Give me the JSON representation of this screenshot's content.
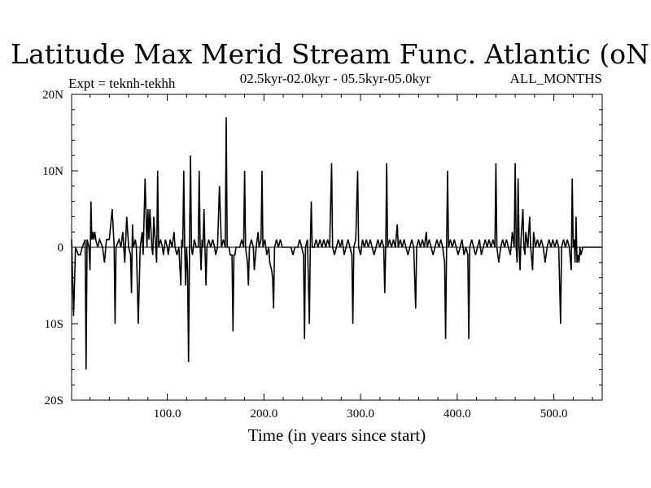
{
  "chart_data": {
    "type": "line",
    "title": "Latitude Max Merid Stream Func. Atlantic (oN)",
    "subtitle_left": "Expt = teknh-tekhh",
    "subtitle_center": "02.5kyr-02.0kyr - 05.5kyr-05.0kyr",
    "subtitle_right": "ALL_MONTHS",
    "xlabel": "Time (in years since start)",
    "ylabel": "",
    "xlim": [
      1,
      550
    ],
    "ylim": [
      -20,
      20
    ],
    "x_ticks": [
      100,
      200,
      300,
      400,
      500
    ],
    "x_tick_labels": [
      "100.0",
      "200.0",
      "300.0",
      "400.0",
      "500.0"
    ],
    "y_ticks": [
      -20,
      -10,
      0,
      10,
      20
    ],
    "y_tick_labels": [
      "20S",
      "10S",
      "0",
      "10N",
      "20N"
    ],
    "series": [
      {
        "name": "teknh-tekhh",
        "color": "#000000",
        "points": [
          [
            1,
            1
          ],
          [
            3,
            -9
          ],
          [
            5,
            0
          ],
          [
            8,
            -1
          ],
          [
            10,
            -1
          ],
          [
            12,
            0
          ],
          [
            15,
            1
          ],
          [
            16,
            -16
          ],
          [
            17,
            1
          ],
          [
            19,
            0
          ],
          [
            20,
            -3
          ],
          [
            21,
            6
          ],
          [
            22,
            1
          ],
          [
            23,
            2
          ],
          [
            24,
            1
          ],
          [
            25,
            2
          ],
          [
            26,
            1
          ],
          [
            28,
            0
          ],
          [
            30,
            1
          ],
          [
            33,
            0
          ],
          [
            35,
            -2
          ],
          [
            37,
            1
          ],
          [
            40,
            1
          ],
          [
            43,
            5
          ],
          [
            45,
            0
          ],
          [
            46,
            -10
          ],
          [
            47,
            0
          ],
          [
            50,
            1
          ],
          [
            52,
            0
          ],
          [
            54,
            2
          ],
          [
            56,
            -2
          ],
          [
            58,
            4
          ],
          [
            60,
            0
          ],
          [
            62,
            -1
          ],
          [
            63,
            -6
          ],
          [
            64,
            3
          ],
          [
            65,
            0
          ],
          [
            67,
            1
          ],
          [
            68,
            0
          ],
          [
            70,
            -10
          ],
          [
            72,
            0
          ],
          [
            74,
            2
          ],
          [
            75,
            -1
          ],
          [
            77,
            9
          ],
          [
            79,
            0
          ],
          [
            80,
            5
          ],
          [
            81,
            1
          ],
          [
            82,
            5
          ],
          [
            84,
            0
          ],
          [
            85,
            -1
          ],
          [
            86,
            4
          ],
          [
            88,
            0
          ],
          [
            89,
            -2
          ],
          [
            90,
            10
          ],
          [
            91,
            0
          ],
          [
            93,
            1
          ],
          [
            95,
            0
          ],
          [
            96,
            -1
          ],
          [
            98,
            1
          ],
          [
            100,
            0
          ],
          [
            101,
            -1
          ],
          [
            103,
            1
          ],
          [
            105,
            0
          ],
          [
            107,
            2
          ],
          [
            108,
            0
          ],
          [
            110,
            -1
          ],
          [
            112,
            0
          ],
          [
            114,
            -5
          ],
          [
            115,
            1
          ],
          [
            116,
            0
          ],
          [
            117,
            10
          ],
          [
            118,
            0
          ],
          [
            119,
            -5
          ],
          [
            120,
            0
          ],
          [
            121,
            -3
          ],
          [
            122,
            -15
          ],
          [
            123,
            0
          ],
          [
            124,
            12
          ],
          [
            125,
            0
          ],
          [
            126,
            -1
          ],
          [
            128,
            1
          ],
          [
            130,
            0
          ],
          [
            132,
            0
          ],
          [
            133,
            10
          ],
          [
            134,
            0
          ],
          [
            135,
            -3
          ],
          [
            136,
            1
          ],
          [
            137,
            0
          ],
          [
            138,
            5
          ],
          [
            139,
            0
          ],
          [
            140,
            -5
          ],
          [
            141,
            0
          ],
          [
            143,
            1
          ],
          [
            145,
            0
          ],
          [
            147,
            1
          ],
          [
            149,
            0
          ],
          [
            150,
            -1
          ],
          [
            152,
            0
          ],
          [
            154,
            8
          ],
          [
            156,
            0
          ],
          [
            158,
            1
          ],
          [
            160,
            0
          ],
          [
            161,
            17
          ],
          [
            162,
            0
          ],
          [
            164,
            0
          ],
          [
            165,
            -1
          ],
          [
            167,
            -1
          ],
          [
            168,
            -11
          ],
          [
            169,
            -1
          ],
          [
            170,
            -1
          ],
          [
            171,
            0
          ],
          [
            173,
            0
          ],
          [
            175,
            0
          ],
          [
            177,
            1
          ],
          [
            179,
            0
          ],
          [
            180,
            10
          ],
          [
            181,
            0
          ],
          [
            183,
            -2
          ],
          [
            184,
            -5
          ],
          [
            185,
            0
          ],
          [
            187,
            1
          ],
          [
            189,
            0
          ],
          [
            190,
            -3
          ],
          [
            192,
            0
          ],
          [
            194,
            2
          ],
          [
            195,
            0
          ],
          [
            197,
            1
          ],
          [
            198,
            10
          ],
          [
            199,
            0
          ],
          [
            201,
            1
          ],
          [
            202,
            0
          ],
          [
            203,
            -1
          ],
          [
            205,
            0
          ],
          [
            206,
            -2
          ],
          [
            208,
            -3
          ],
          [
            209,
            -4
          ],
          [
            210,
            -8
          ],
          [
            211,
            0
          ],
          [
            213,
            1
          ],
          [
            215,
            0
          ],
          [
            217,
            1
          ],
          [
            219,
            0
          ],
          [
            222,
            0
          ],
          [
            225,
            0
          ],
          [
            228,
            0
          ],
          [
            230,
            -1
          ],
          [
            232,
            0
          ],
          [
            235,
            0
          ],
          [
            237,
            1
          ],
          [
            239,
            0
          ],
          [
            241,
            -1
          ],
          [
            242,
            -12
          ],
          [
            243,
            0
          ],
          [
            245,
            1
          ],
          [
            247,
            -10
          ],
          [
            248,
            0
          ],
          [
            249,
            6
          ],
          [
            250,
            0
          ],
          [
            252,
            0
          ],
          [
            254,
            1
          ],
          [
            256,
            0
          ],
          [
            258,
            1
          ],
          [
            260,
            0
          ],
          [
            262,
            1
          ],
          [
            264,
            0
          ],
          [
            266,
            1
          ],
          [
            268,
            0
          ],
          [
            270,
            11
          ],
          [
            271,
            0
          ],
          [
            273,
            -1
          ],
          [
            275,
            0
          ],
          [
            277,
            1
          ],
          [
            279,
            0
          ],
          [
            281,
            1
          ],
          [
            283,
            -1
          ],
          [
            285,
            0
          ],
          [
            287,
            1
          ],
          [
            289,
            0
          ],
          [
            291,
            -1
          ],
          [
            292,
            -10
          ],
          [
            293,
            0
          ],
          [
            295,
            1
          ],
          [
            297,
            10
          ],
          [
            298,
            0
          ],
          [
            300,
            -1
          ],
          [
            302,
            1
          ],
          [
            304,
            0
          ],
          [
            306,
            1
          ],
          [
            308,
            0
          ],
          [
            310,
            1
          ],
          [
            312,
            0
          ],
          [
            314,
            -1
          ],
          [
            316,
            0
          ],
          [
            318,
            1
          ],
          [
            320,
            0
          ],
          [
            322,
            1
          ],
          [
            324,
            0
          ],
          [
            325,
            -6
          ],
          [
            326,
            0
          ],
          [
            327,
            11
          ],
          [
            328,
            0
          ],
          [
            330,
            1
          ],
          [
            332,
            0
          ],
          [
            334,
            1
          ],
          [
            336,
            0
          ],
          [
            338,
            3
          ],
          [
            339,
            0
          ],
          [
            341,
            1
          ],
          [
            343,
            0
          ],
          [
            345,
            1
          ],
          [
            347,
            0
          ],
          [
            349,
            -1
          ],
          [
            351,
            0
          ],
          [
            353,
            1
          ],
          [
            355,
            0
          ],
          [
            357,
            -8
          ],
          [
            358,
            0
          ],
          [
            360,
            1
          ],
          [
            362,
            0
          ],
          [
            364,
            1
          ],
          [
            366,
            0
          ],
          [
            368,
            2
          ],
          [
            369,
            0
          ],
          [
            371,
            1
          ],
          [
            373,
            0
          ],
          [
            375,
            -1
          ],
          [
            377,
            0
          ],
          [
            379,
            1
          ],
          [
            381,
            0
          ],
          [
            383,
            1
          ],
          [
            385,
            0
          ],
          [
            387,
            -2
          ],
          [
            388,
            -12
          ],
          [
            389,
            0
          ],
          [
            390,
            10
          ],
          [
            391,
            0
          ],
          [
            393,
            1
          ],
          [
            395,
            0
          ],
          [
            397,
            1
          ],
          [
            399,
            0
          ],
          [
            401,
            -1
          ],
          [
            403,
            0
          ],
          [
            405,
            1
          ],
          [
            407,
            -1
          ],
          [
            409,
            0
          ],
          [
            411,
            -1
          ],
          [
            412,
            -12
          ],
          [
            413,
            0
          ],
          [
            415,
            1
          ],
          [
            417,
            0
          ],
          [
            419,
            -1
          ],
          [
            421,
            0
          ],
          [
            423,
            1
          ],
          [
            425,
            -1
          ],
          [
            427,
            0
          ],
          [
            429,
            1
          ],
          [
            431,
            0
          ],
          [
            433,
            1
          ],
          [
            435,
            0
          ],
          [
            437,
            1
          ],
          [
            439,
            0
          ],
          [
            440,
            11
          ],
          [
            441,
            0
          ],
          [
            443,
            -2
          ],
          [
            445,
            0
          ],
          [
            447,
            1
          ],
          [
            449,
            0
          ],
          [
            451,
            1
          ],
          [
            453,
            0
          ],
          [
            455,
            -1
          ],
          [
            457,
            2
          ],
          [
            459,
            0
          ],
          [
            460,
            11
          ],
          [
            461,
            0
          ],
          [
            462,
            -2
          ],
          [
            463,
            9
          ],
          [
            464,
            0
          ],
          [
            465,
            -3
          ],
          [
            466,
            1
          ],
          [
            468,
            5
          ],
          [
            469,
            0
          ],
          [
            470,
            -1
          ],
          [
            471,
            2
          ],
          [
            473,
            0
          ],
          [
            475,
            4
          ],
          [
            476,
            0
          ],
          [
            478,
            -3
          ],
          [
            479,
            2
          ],
          [
            481,
            0
          ],
          [
            483,
            1
          ],
          [
            485,
            0
          ],
          [
            487,
            1
          ],
          [
            489,
            0
          ],
          [
            491,
            -2
          ],
          [
            493,
            0
          ],
          [
            495,
            1
          ],
          [
            497,
            0
          ],
          [
            499,
            1
          ],
          [
            501,
            0
          ],
          [
            503,
            1
          ],
          [
            505,
            0
          ],
          [
            507,
            -10
          ],
          [
            508,
            0
          ],
          [
            510,
            1
          ],
          [
            512,
            0
          ],
          [
            514,
            1
          ],
          [
            516,
            0
          ],
          [
            518,
            -3
          ],
          [
            519,
            9
          ],
          [
            520,
            0
          ],
          [
            521,
            1
          ],
          [
            522,
            -2
          ],
          [
            523,
            4
          ],
          [
            524,
            -2
          ],
          [
            525,
            -1
          ],
          [
            526,
            -2
          ],
          [
            527,
            0
          ],
          [
            528,
            -1
          ],
          [
            530,
            0
          ],
          [
            532,
            0
          ],
          [
            535,
            0
          ],
          [
            540,
            0
          ],
          [
            545,
            0
          ],
          [
            550,
            0
          ]
        ]
      }
    ]
  }
}
